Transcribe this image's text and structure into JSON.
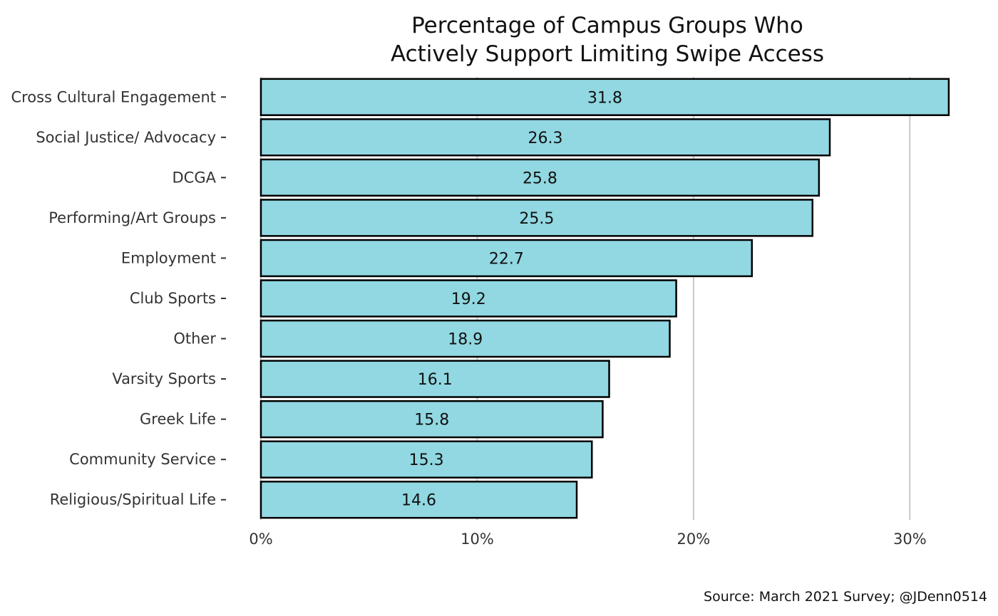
{
  "chart_data": {
    "type": "bar",
    "orientation": "horizontal",
    "title": [
      "Percentage of Campus Groups Who",
      "Actively Support Limiting Swipe Access"
    ],
    "caption": "Source: March 2021 Survey; @JDenn0514",
    "categories": [
      "Cross Cultural Engagement",
      "Social Justice/ Advocacy",
      "DCGA",
      "Performing/Art Groups",
      "Employment",
      "Club Sports",
      "Other",
      "Varsity Sports",
      "Greek Life",
      "Community Service",
      "Religious/Spiritual Life"
    ],
    "values": [
      31.8,
      26.3,
      25.8,
      25.5,
      22.7,
      19.2,
      18.9,
      16.1,
      15.8,
      15.3,
      14.6
    ],
    "data_labels": [
      "31.8",
      "26.3",
      "25.8",
      "25.5",
      "22.7",
      "19.2",
      "18.9",
      "16.1",
      "15.8",
      "15.3",
      "14.6"
    ],
    "xlim": [
      0,
      32
    ],
    "xticks": [
      0,
      10,
      20,
      30
    ],
    "xtick_labels": [
      "0%",
      "10%",
      "20%",
      "30%"
    ],
    "grid": "vertical major",
    "colors": {
      "bar_fill": "#91d8e2",
      "bar_stroke": "#000000",
      "grid": "#c8c8c8"
    }
  }
}
